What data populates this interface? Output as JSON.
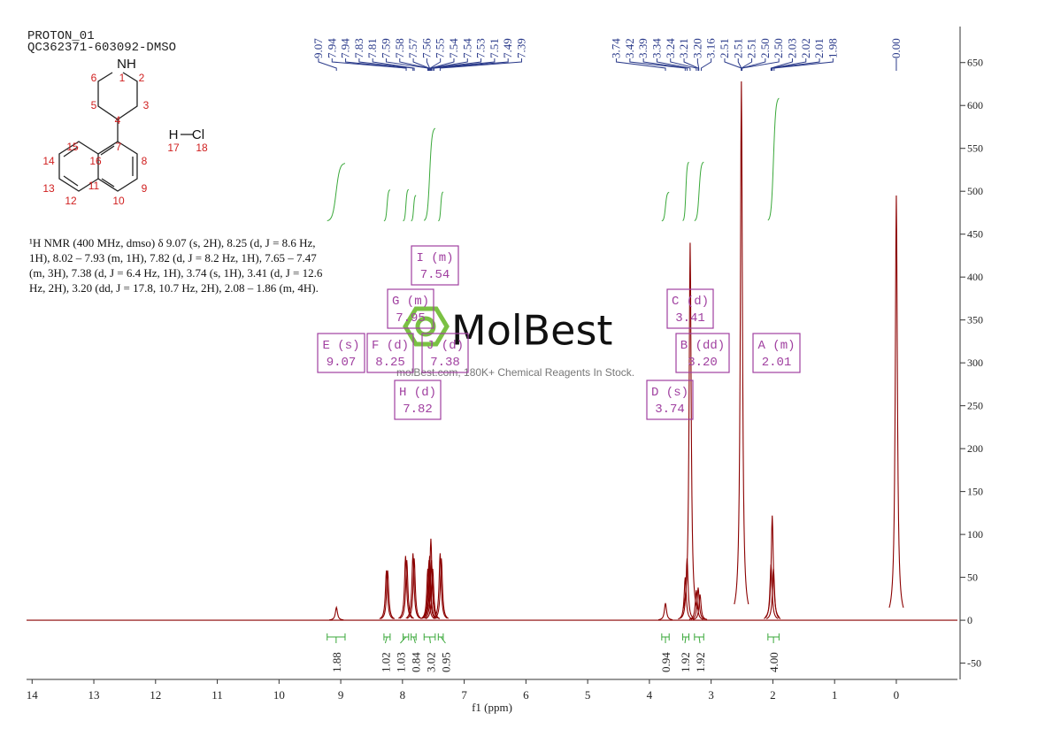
{
  "chart_data": {
    "type": "nmr",
    "title": "PROTON_01",
    "subtitle": "QC362371-603092-DMSO",
    "xlabel": "f1 (ppm)",
    "xlim": [
      14.09,
      -0.99
    ],
    "xticks": [
      14,
      13,
      12,
      11,
      10,
      9,
      8,
      7,
      6,
      5,
      4,
      3,
      2,
      1,
      0
    ],
    "ylim": [
      -69,
      692
    ],
    "yticks": [
      -50,
      0,
      50,
      100,
      150,
      200,
      250,
      300,
      350,
      400,
      450,
      500,
      550,
      600,
      650
    ],
    "color": "#8b0000",
    "integral_color": "#3aa83a",
    "box_color": "#a040a0",
    "peak_labels": [
      9.07,
      7.94,
      7.94,
      7.83,
      7.81,
      7.59,
      7.58,
      7.57,
      7.56,
      7.55,
      7.54,
      7.54,
      7.53,
      7.51,
      7.49,
      7.39,
      3.74,
      3.42,
      3.39,
      3.34,
      3.24,
      3.21,
      {
        "value": 3.2,
        "label": "3.20"
      },
      3.16,
      2.51,
      2.51,
      2.51,
      {
        "value": 2.5,
        "label": "2.50"
      },
      {
        "value": 2.5,
        "label": "2.50"
      },
      2.03,
      2.02,
      2.01,
      1.98,
      {
        "value": 0,
        "label": "0.00"
      }
    ],
    "peaks": {
      "x": [
        9.07,
        8.26,
        8.24,
        7.95,
        7.93,
        7.83,
        7.81,
        7.59,
        7.57,
        7.56,
        7.54,
        7.53,
        7.51,
        7.39,
        7.37,
        3.74,
        3.42,
        3.39,
        3.34,
        3.24,
        3.21,
        3.18,
        2.51,
        2.03,
        2.01,
        1.99,
        0.0
      ],
      "heights": [
        15,
        58,
        58,
        75,
        70,
        78,
        72,
        60,
        70,
        75,
        95,
        70,
        60,
        78,
        72,
        20,
        50,
        72,
        440,
        35,
        38,
        30,
        628,
        65,
        122,
        60,
        495
      ]
    },
    "integrals": {
      "starts": [
        9.22,
        8.3,
        7.99,
        7.86,
        7.65,
        7.42,
        3.8,
        3.46,
        3.27,
        2.08
      ],
      "ends": [
        8.93,
        8.2,
        7.9,
        7.78,
        7.47,
        7.34,
        3.68,
        3.36,
        3.12,
        1.9
      ],
      "values": [
        1.88,
        1.02,
        1.03,
        0.84,
        3.02,
        0.95,
        0.94,
        1.92,
        1.92,
        {
          "value": 4,
          "label": "4.00"
        }
      ]
    },
    "multiplets": [
      {
        "label": "I (m)",
        "shift": 7.54
      },
      {
        "label": "G (m)",
        "shift": 7.95
      },
      {
        "label": "E (s)",
        "shift": 9.07
      },
      {
        "label": "F (d)",
        "shift": 8.25
      },
      {
        "label": "J (d)",
        "shift": 7.38
      },
      {
        "label": "H (d)",
        "shift": 7.82
      },
      {
        "label": "C (d)",
        "shift": 3.41
      },
      {
        "label": "B (dd)",
        "shift": {
          "value": 3.2,
          "label": "3.20"
        }
      },
      {
        "label": "A (m)",
        "shift": 2.01
      },
      {
        "label": "D (s)",
        "shift": 3.74
      }
    ]
  },
  "structure": {
    "symbols": [
      "NH",
      "H",
      "Cl"
    ],
    "atom_numbers": [
      1,
      2,
      3,
      4,
      5,
      6,
      7,
      8,
      9,
      10,
      11,
      12,
      13,
      14,
      15,
      16,
      17,
      18
    ]
  },
  "description": "¹H NMR (400 MHz, dmso) δ 9.07 (s, 2H), 8.25 (d, J = 8.6 Hz, 1H), 8.02 – 7.93 (m, 1H), 7.82 (d, J = 8.2 Hz, 1H), 7.65 – 7.47 (m, 3H), 7.38 (d, J = 6.4 Hz, 1H), 3.74 (s, 1H), 3.41 (d, J = 12.6 Hz, 2H), 3.20 (dd, J = 17.8, 10.7 Hz, 2H), 2.08 – 1.86 (m, 4H).",
  "watermark": {
    "brand": "MolBest",
    "tagline": "molBest.com, 180K+ Chemical Reagents In Stock."
  }
}
